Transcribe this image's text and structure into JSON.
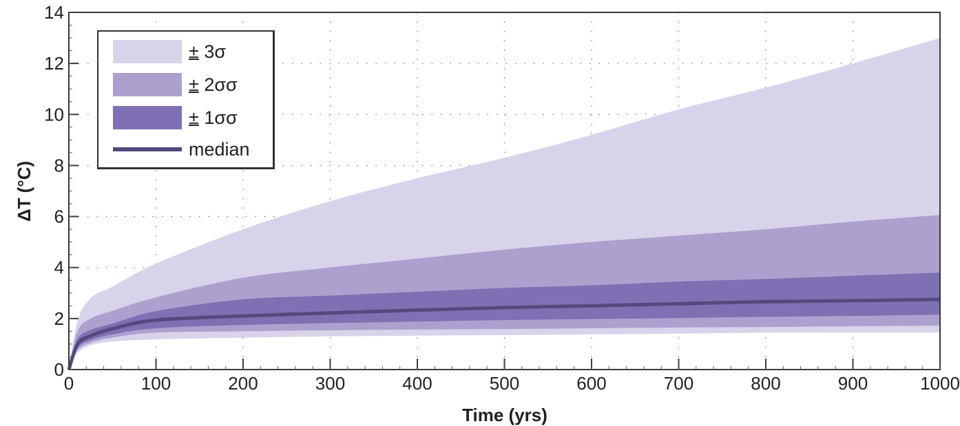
{
  "chart_data": {
    "type": "area",
    "title": "",
    "xlabel": "Time (yrs)",
    "ylabel": "ΔT (°C)",
    "xlim": [
      0,
      1000
    ],
    "ylim": [
      0,
      14
    ],
    "xticks": [
      0,
      100,
      200,
      300,
      400,
      500,
      600,
      700,
      800,
      900,
      1000
    ],
    "yticks": [
      0,
      2,
      4,
      6,
      8,
      10,
      12,
      14
    ],
    "grid": true,
    "legend_position": "upper left",
    "x": [
      0,
      10,
      25,
      50,
      100,
      200,
      300,
      400,
      500,
      600,
      700,
      800,
      900,
      1000
    ],
    "bands": [
      {
        "name": "± 3σ",
        "color": "#d8d3ea",
        "upper": [
          0,
          1.9,
          2.8,
          3.25,
          4.15,
          5.5,
          6.6,
          7.5,
          8.3,
          9.2,
          10.2,
          11.05,
          12.0,
          13.0
        ],
        "lower": [
          0,
          0.65,
          0.95,
          1.1,
          1.18,
          1.25,
          1.3,
          1.33,
          1.35,
          1.38,
          1.41,
          1.45,
          1.45,
          1.45
        ]
      },
      {
        "name": "± 2σσ",
        "color": "#ada0cf",
        "upper": [
          0,
          1.5,
          2.0,
          2.3,
          2.83,
          3.6,
          4.0,
          4.35,
          4.7,
          5.0,
          5.25,
          5.5,
          5.8,
          6.06
        ],
        "lower": [
          0,
          0.75,
          1.05,
          1.25,
          1.45,
          1.5,
          1.54,
          1.57,
          1.59,
          1.62,
          1.65,
          1.67,
          1.7,
          1.72
        ]
      },
      {
        "name": "± 1σσ",
        "color": "#7f70b3",
        "upper": [
          0,
          1.2,
          1.55,
          1.8,
          2.29,
          2.75,
          2.9,
          3.05,
          3.2,
          3.3,
          3.45,
          3.55,
          3.68,
          3.8
        ],
        "lower": [
          0,
          0.85,
          1.15,
          1.38,
          1.62,
          1.75,
          1.82,
          1.88,
          1.94,
          1.98,
          2.02,
          2.07,
          2.1,
          2.15
        ]
      }
    ],
    "series": [
      {
        "name": "median",
        "color": "#55487d",
        "values": [
          0,
          1.0,
          1.32,
          1.6,
          1.94,
          2.1,
          2.22,
          2.33,
          2.43,
          2.5,
          2.58,
          2.66,
          2.7,
          2.75
        ]
      }
    ]
  },
  "legend": {
    "items": [
      {
        "pm": "±",
        "label": " 3σ",
        "color": "#d8d3ea",
        "kind": "band"
      },
      {
        "pm": "±",
        "label": " 2σσ",
        "color": "#ada0cf",
        "kind": "band"
      },
      {
        "pm": "±",
        "label": " 1σσ",
        "color": "#7f70b3",
        "kind": "band"
      },
      {
        "pm": "",
        "label": "median",
        "color": "#55487d",
        "kind": "line"
      }
    ]
  }
}
